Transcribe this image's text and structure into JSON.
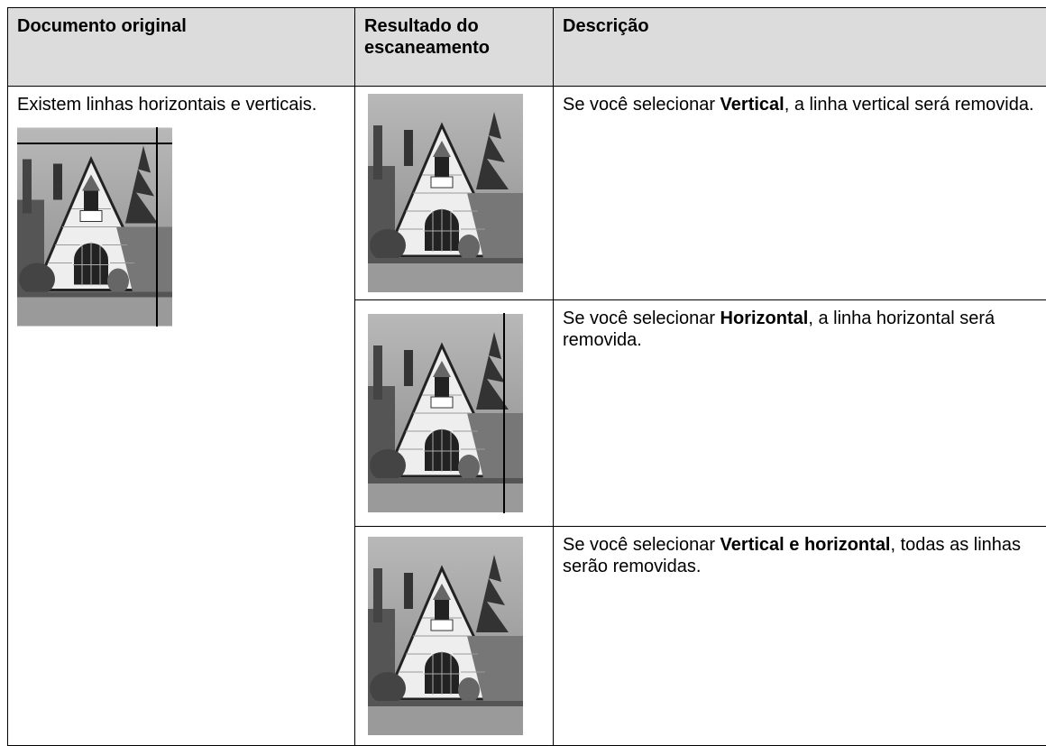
{
  "table": {
    "header": [
      "Documento original",
      "Resultado do escaneamento",
      "Descrição"
    ],
    "original_document": "Existem linhas horizontais e verticais.",
    "rows": [
      {
        "description": [
          "Se você selecionar ",
          "Vertical",
          ", a linha vertical será removida."
        ]
      },
      {
        "description": [
          "Se você selecionar ",
          "Horizontal",
          ", a linha horizontal será removida."
        ]
      },
      {
        "description": [
          "Se você selecionar ",
          "Vertical e horizontal",
          ", todas as linhas serão removidas."
        ]
      }
    ]
  }
}
